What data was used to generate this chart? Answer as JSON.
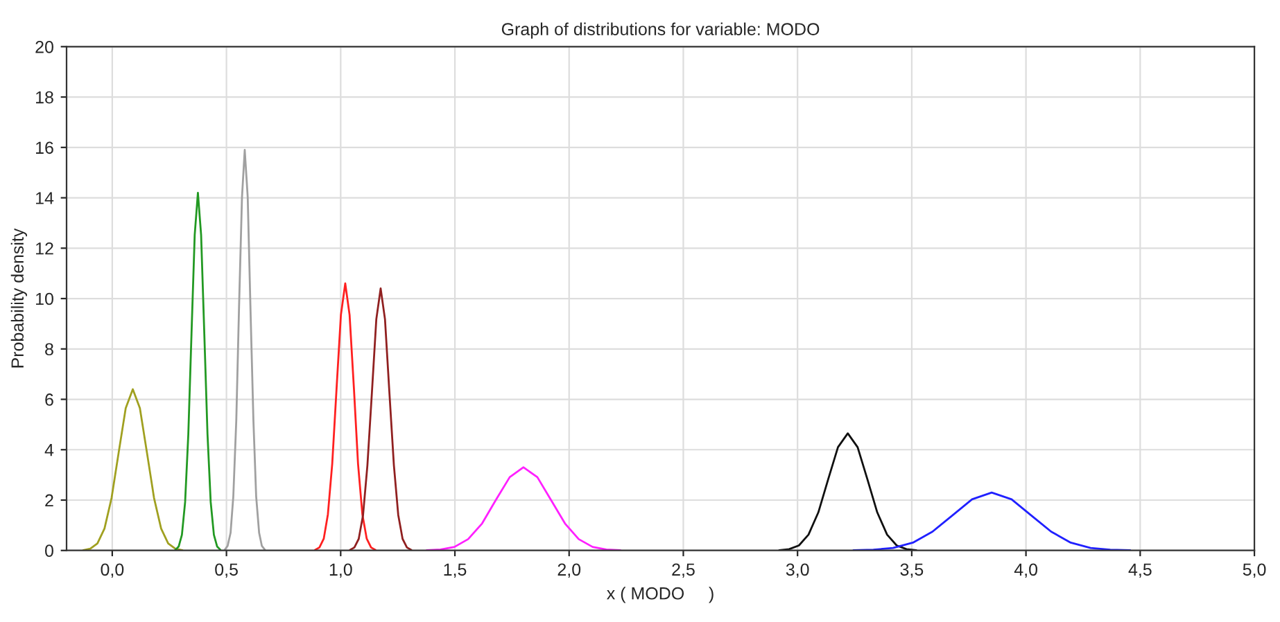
{
  "chart_data": {
    "type": "line",
    "title": "Graph of distributions for variable: MODO",
    "xlabel": "x ( MODO     )",
    "ylabel": "Probability density",
    "xlim": [
      -0.2,
      5.0
    ],
    "ylim": [
      0,
      20
    ],
    "xticks": [
      {
        "value": 0,
        "label": "0,0"
      },
      {
        "value": 0.5,
        "label": "0,5"
      },
      {
        "value": 1,
        "label": "1,0"
      },
      {
        "value": 1.5,
        "label": "1,5"
      },
      {
        "value": 2,
        "label": "2,0"
      },
      {
        "value": 2.5,
        "label": "2,5"
      },
      {
        "value": 3,
        "label": "3,0"
      },
      {
        "value": 3.5,
        "label": "3,5"
      },
      {
        "value": 4,
        "label": "4,0"
      },
      {
        "value": 4.5,
        "label": "4,5"
      },
      {
        "value": 5,
        "label": "5,0"
      }
    ],
    "yticks": [
      0,
      2,
      4,
      6,
      8,
      10,
      12,
      14,
      16,
      18,
      20
    ],
    "grid": true,
    "marker": "none",
    "line_style": "solid",
    "series": [
      {
        "color": "#a0a020",
        "x": [
          -0.127,
          -0.096,
          -0.065,
          -0.034,
          -0.003,
          0.028,
          0.059,
          0.09,
          0.121,
          0.152,
          0.183,
          0.214,
          0.245,
          0.276,
          0.307
        ],
        "values": [
          0.01,
          0.07,
          0.28,
          0.87,
          2.08,
          3.88,
          5.65,
          6.4,
          5.65,
          3.88,
          2.08,
          0.87,
          0.28,
          0.07,
          0.01
        ]
      },
      {
        "color": "#229922",
        "x": [
          0.277,
          0.291,
          0.305,
          0.319,
          0.333,
          0.347,
          0.361,
          0.375,
          0.389,
          0.403,
          0.417,
          0.431,
          0.445,
          0.459,
          0.473
        ],
        "values": [
          0.03,
          0.16,
          0.62,
          1.92,
          4.61,
          8.61,
          12.53,
          14.2,
          12.53,
          8.61,
          4.61,
          1.92,
          0.62,
          0.16,
          0.03
        ]
      },
      {
        "color": "#a0a0a0",
        "x": [
          0.493,
          0.505,
          0.518,
          0.53,
          0.543,
          0.555,
          0.568,
          0.58,
          0.593,
          0.605,
          0.618,
          0.63,
          0.643,
          0.655,
          0.668
        ],
        "values": [
          0.03,
          0.18,
          0.7,
          2.15,
          5.16,
          9.64,
          14.03,
          15.9,
          14.03,
          9.64,
          5.16,
          2.15,
          0.7,
          0.18,
          0.03
        ]
      },
      {
        "color": "#ff2020",
        "x": [
          0.888,
          0.907,
          0.926,
          0.944,
          0.963,
          0.982,
          1.001,
          1.02,
          1.039,
          1.058,
          1.076,
          1.095,
          1.114,
          1.133,
          1.152
        ],
        "values": [
          0.02,
          0.12,
          0.47,
          1.43,
          3.44,
          6.43,
          9.35,
          10.6,
          9.35,
          6.43,
          3.44,
          1.43,
          0.47,
          0.12,
          0.02
        ]
      },
      {
        "color": "#902020",
        "x": [
          1.041,
          1.06,
          1.079,
          1.098,
          1.117,
          1.137,
          1.156,
          1.175,
          1.194,
          1.213,
          1.233,
          1.252,
          1.271,
          1.29,
          1.309
        ],
        "values": [
          0.02,
          0.12,
          0.46,
          1.41,
          3.38,
          6.31,
          9.18,
          10.4,
          9.18,
          6.31,
          3.38,
          1.41,
          0.46,
          0.12,
          0.02
        ]
      },
      {
        "color": "#ff20ff",
        "x": [
          1.377,
          1.437,
          1.498,
          1.558,
          1.619,
          1.679,
          1.74,
          1.8,
          1.861,
          1.921,
          1.982,
          2.042,
          2.103,
          2.163,
          2.224
        ],
        "values": [
          0.01,
          0.04,
          0.14,
          0.45,
          1.07,
          2.0,
          2.91,
          3.3,
          2.91,
          2.0,
          1.07,
          0.45,
          0.14,
          0.04,
          0.01
        ]
      },
      {
        "color": "#101010",
        "x": [
          2.92,
          2.963,
          3.006,
          3.048,
          3.091,
          3.134,
          3.177,
          3.22,
          3.263,
          3.306,
          3.349,
          3.392,
          3.434,
          3.477,
          3.52
        ],
        "values": [
          0.01,
          0.05,
          0.2,
          0.63,
          1.51,
          2.82,
          4.1,
          4.65,
          4.1,
          2.82,
          1.51,
          0.63,
          0.2,
          0.05,
          0.01
        ]
      },
      {
        "color": "#2020ff",
        "x": [
          3.245,
          3.332,
          3.418,
          3.505,
          3.591,
          3.678,
          3.764,
          3.85,
          3.937,
          4.023,
          4.11,
          4.196,
          4.283,
          4.369,
          4.456
        ],
        "values": [
          0.01,
          0.03,
          0.1,
          0.31,
          0.75,
          1.39,
          2.03,
          2.3,
          2.03,
          1.39,
          0.75,
          0.31,
          0.1,
          0.03,
          0.01
        ]
      }
    ]
  }
}
